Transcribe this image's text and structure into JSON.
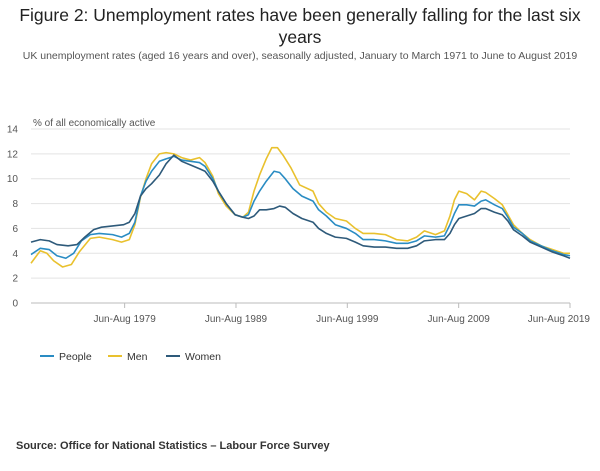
{
  "title": "Figure 2: Unemployment rates have been generally falling for the last six years",
  "subtitle": "UK unemployment rates (aged 16 years and over), seasonally adjusted, January to March 1971 to June to August 2019",
  "source": "Source: Office for National Statistics – Labour Force Survey",
  "colors": {
    "people": "#2a8cc3",
    "men": "#e9c12e",
    "women": "#2e5a7a",
    "grid": "#e3e3e3",
    "axis": "#bbbbbb",
    "text": "#555555"
  },
  "chart_data": {
    "type": "line",
    "ylabel": "% of all economically active",
    "ylim": [
      0,
      14
    ],
    "yticks": [
      0,
      2,
      4,
      6,
      8,
      10,
      12,
      14
    ],
    "xlim": [
      1971.17,
      2019.58
    ],
    "xticks": [
      {
        "value": 1979.58,
        "label": "Jun-Aug 1979"
      },
      {
        "value": 1989.58,
        "label": "Jun-Aug 1989"
      },
      {
        "value": 1999.58,
        "label": "Jun-Aug 1999"
      },
      {
        "value": 2009.58,
        "label": "Jun-Aug 2009"
      },
      {
        "value": 2019.58,
        "label": "Jun-Aug 2019"
      }
    ],
    "grid": true,
    "legend_position": "bottom-left",
    "series": [
      {
        "name": "People",
        "color_key": "people",
        "points": [
          [
            1971.17,
            3.9
          ],
          [
            1972,
            4.4
          ],
          [
            1972.8,
            4.3
          ],
          [
            1973.5,
            3.8
          ],
          [
            1974.3,
            3.6
          ],
          [
            1975,
            4.0
          ],
          [
            1975.7,
            5.0
          ],
          [
            1976.5,
            5.5
          ],
          [
            1977.3,
            5.6
          ],
          [
            1978.5,
            5.5
          ],
          [
            1979.3,
            5.3
          ],
          [
            1980,
            5.6
          ],
          [
            1980.5,
            6.5
          ],
          [
            1981,
            8.6
          ],
          [
            1981.5,
            9.8
          ],
          [
            1982,
            10.6
          ],
          [
            1982.7,
            11.4
          ],
          [
            1983.3,
            11.6
          ],
          [
            1984,
            11.8
          ],
          [
            1984.7,
            11.5
          ],
          [
            1985.5,
            11.4
          ],
          [
            1986.3,
            11.3
          ],
          [
            1986.8,
            11.0
          ],
          [
            1987.5,
            10.0
          ],
          [
            1988,
            9.0
          ],
          [
            1988.7,
            8.0
          ],
          [
            1989.5,
            7.1
          ],
          [
            1990.2,
            6.9
          ],
          [
            1990.7,
            7.1
          ],
          [
            1991.2,
            8.2
          ],
          [
            1991.7,
            9.0
          ],
          [
            1992.3,
            9.8
          ],
          [
            1993,
            10.6
          ],
          [
            1993.5,
            10.5
          ],
          [
            1994,
            10.0
          ],
          [
            1994.7,
            9.2
          ],
          [
            1995.5,
            8.6
          ],
          [
            1996.5,
            8.2
          ],
          [
            1997,
            7.5
          ],
          [
            1997.7,
            7.0
          ],
          [
            1998.5,
            6.3
          ],
          [
            1999.5,
            6.0
          ],
          [
            2000.3,
            5.6
          ],
          [
            2001,
            5.1
          ],
          [
            2002,
            5.1
          ],
          [
            2003,
            5.0
          ],
          [
            2004,
            4.8
          ],
          [
            2005,
            4.8
          ],
          [
            2005.8,
            5.0
          ],
          [
            2006.5,
            5.4
          ],
          [
            2007.5,
            5.3
          ],
          [
            2008.3,
            5.4
          ],
          [
            2008.8,
            6.3
          ],
          [
            2009.2,
            7.2
          ],
          [
            2009.6,
            7.9
          ],
          [
            2010.3,
            7.9
          ],
          [
            2011,
            7.8
          ],
          [
            2011.6,
            8.2
          ],
          [
            2012,
            8.3
          ],
          [
            2012.8,
            7.9
          ],
          [
            2013.5,
            7.6
          ],
          [
            2014,
            6.9
          ],
          [
            2014.5,
            6.1
          ],
          [
            2015.3,
            5.6
          ],
          [
            2016,
            5.0
          ],
          [
            2017,
            4.6
          ],
          [
            2018,
            4.2
          ],
          [
            2019,
            3.9
          ],
          [
            2019.58,
            3.8
          ]
        ]
      },
      {
        "name": "Men",
        "color_key": "men",
        "points": [
          [
            1971.17,
            3.2
          ],
          [
            1972,
            4.2
          ],
          [
            1972.6,
            4.0
          ],
          [
            1973.2,
            3.4
          ],
          [
            1974,
            2.9
          ],
          [
            1974.8,
            3.1
          ],
          [
            1975.5,
            4.1
          ],
          [
            1976.5,
            5.2
          ],
          [
            1977.3,
            5.3
          ],
          [
            1978.5,
            5.1
          ],
          [
            1979.3,
            4.9
          ],
          [
            1980,
            5.1
          ],
          [
            1980.5,
            6.3
          ],
          [
            1981,
            8.5
          ],
          [
            1981.5,
            10.0
          ],
          [
            1982,
            11.2
          ],
          [
            1982.7,
            12.0
          ],
          [
            1983.3,
            12.1
          ],
          [
            1984,
            12.0
          ],
          [
            1984.7,
            11.7
          ],
          [
            1985.5,
            11.5
          ],
          [
            1986.3,
            11.7
          ],
          [
            1986.8,
            11.3
          ],
          [
            1987.5,
            10.2
          ],
          [
            1988,
            8.8
          ],
          [
            1988.7,
            7.8
          ],
          [
            1989.5,
            7.1
          ],
          [
            1990.2,
            6.9
          ],
          [
            1990.7,
            7.3
          ],
          [
            1991.2,
            9.0
          ],
          [
            1991.7,
            10.3
          ],
          [
            1992.3,
            11.6
          ],
          [
            1992.8,
            12.5
          ],
          [
            1993.3,
            12.5
          ],
          [
            1993.8,
            11.9
          ],
          [
            1994.5,
            10.9
          ],
          [
            1995.3,
            9.5
          ],
          [
            1996.5,
            9.0
          ],
          [
            1997,
            8.0
          ],
          [
            1997.7,
            7.3
          ],
          [
            1998.5,
            6.8
          ],
          [
            1999.5,
            6.6
          ],
          [
            2000.3,
            6.0
          ],
          [
            2001,
            5.6
          ],
          [
            2002,
            5.6
          ],
          [
            2003,
            5.5
          ],
          [
            2004,
            5.1
          ],
          [
            2005,
            5.0
          ],
          [
            2005.8,
            5.3
          ],
          [
            2006.5,
            5.8
          ],
          [
            2007.5,
            5.5
          ],
          [
            2008.3,
            5.8
          ],
          [
            2008.8,
            7.0
          ],
          [
            2009.2,
            8.3
          ],
          [
            2009.6,
            9.0
          ],
          [
            2010.3,
            8.8
          ],
          [
            2011,
            8.3
          ],
          [
            2011.6,
            9.0
          ],
          [
            2012,
            8.9
          ],
          [
            2012.8,
            8.4
          ],
          [
            2013.5,
            7.9
          ],
          [
            2014,
            7.1
          ],
          [
            2014.5,
            6.3
          ],
          [
            2015.3,
            5.6
          ],
          [
            2016,
            5.1
          ],
          [
            2017,
            4.6
          ],
          [
            2018,
            4.3
          ],
          [
            2019,
            4.0
          ],
          [
            2019.58,
            4.0
          ]
        ]
      },
      {
        "name": "Women",
        "color_key": "women",
        "points": [
          [
            1971.17,
            4.9
          ],
          [
            1972,
            5.1
          ],
          [
            1972.8,
            5.0
          ],
          [
            1973.5,
            4.7
          ],
          [
            1974.5,
            4.6
          ],
          [
            1975.3,
            4.7
          ],
          [
            1976,
            5.3
          ],
          [
            1976.8,
            5.9
          ],
          [
            1977.5,
            6.1
          ],
          [
            1978.5,
            6.2
          ],
          [
            1979.5,
            6.3
          ],
          [
            1980,
            6.5
          ],
          [
            1980.5,
            7.2
          ],
          [
            1981,
            8.6
          ],
          [
            1981.5,
            9.2
          ],
          [
            1982,
            9.6
          ],
          [
            1982.7,
            10.3
          ],
          [
            1983.3,
            11.2
          ],
          [
            1984,
            11.9
          ],
          [
            1984.7,
            11.4
          ],
          [
            1985.5,
            11.1
          ],
          [
            1986.3,
            10.8
          ],
          [
            1986.8,
            10.6
          ],
          [
            1987.5,
            9.8
          ],
          [
            1988,
            9.0
          ],
          [
            1988.7,
            8.0
          ],
          [
            1989.5,
            7.1
          ],
          [
            1990.2,
            6.9
          ],
          [
            1990.7,
            6.8
          ],
          [
            1991.2,
            7.0
          ],
          [
            1991.7,
            7.5
          ],
          [
            1992.3,
            7.5
          ],
          [
            1993,
            7.6
          ],
          [
            1993.5,
            7.8
          ],
          [
            1994,
            7.7
          ],
          [
            1994.7,
            7.2
          ],
          [
            1995.5,
            6.8
          ],
          [
            1996.5,
            6.5
          ],
          [
            1997,
            6.0
          ],
          [
            1997.7,
            5.6
          ],
          [
            1998.5,
            5.3
          ],
          [
            1999.5,
            5.2
          ],
          [
            2000.3,
            4.9
          ],
          [
            2001,
            4.6
          ],
          [
            2002,
            4.5
          ],
          [
            2003,
            4.5
          ],
          [
            2004,
            4.4
          ],
          [
            2005,
            4.4
          ],
          [
            2005.8,
            4.6
          ],
          [
            2006.5,
            5.0
          ],
          [
            2007.5,
            5.1
          ],
          [
            2008.3,
            5.1
          ],
          [
            2008.8,
            5.6
          ],
          [
            2009.2,
            6.3
          ],
          [
            2009.6,
            6.8
          ],
          [
            2010.3,
            7.0
          ],
          [
            2011,
            7.2
          ],
          [
            2011.6,
            7.6
          ],
          [
            2012,
            7.6
          ],
          [
            2012.8,
            7.3
          ],
          [
            2013.5,
            7.1
          ],
          [
            2014,
            6.6
          ],
          [
            2014.5,
            5.9
          ],
          [
            2015.3,
            5.4
          ],
          [
            2016,
            4.9
          ],
          [
            2017,
            4.5
          ],
          [
            2018,
            4.1
          ],
          [
            2019,
            3.8
          ],
          [
            2019.58,
            3.6
          ]
        ]
      }
    ]
  }
}
